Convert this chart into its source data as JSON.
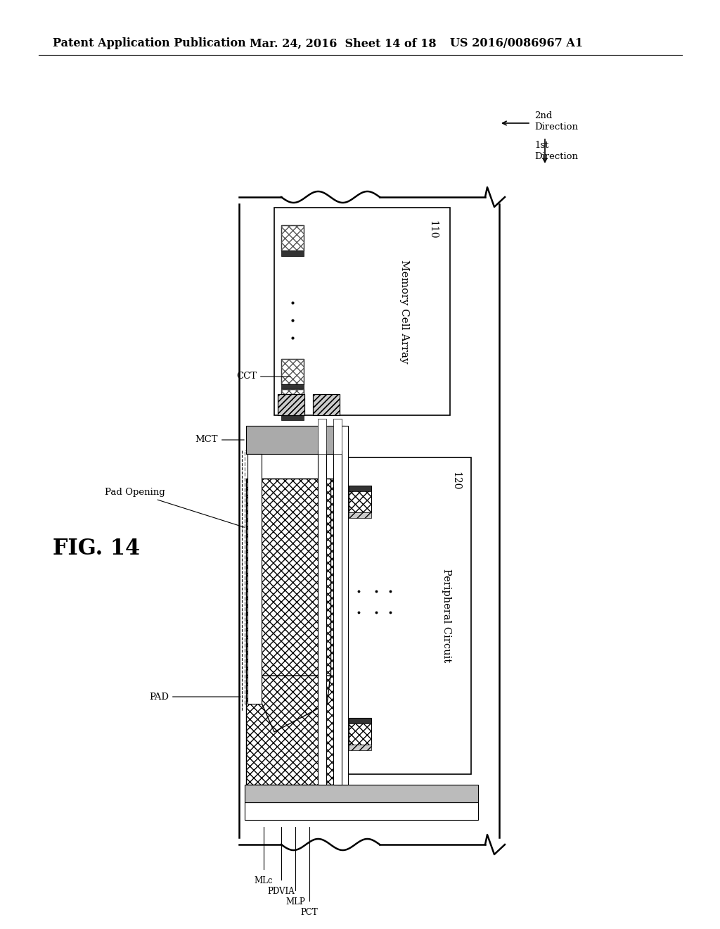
{
  "title_left": "Patent Application Publication",
  "title_mid": "Mar. 24, 2016  Sheet 14 of 18",
  "title_right": "US 2016/0086967 A1",
  "fig_label": "FIG. 14",
  "background_color": "#ffffff"
}
